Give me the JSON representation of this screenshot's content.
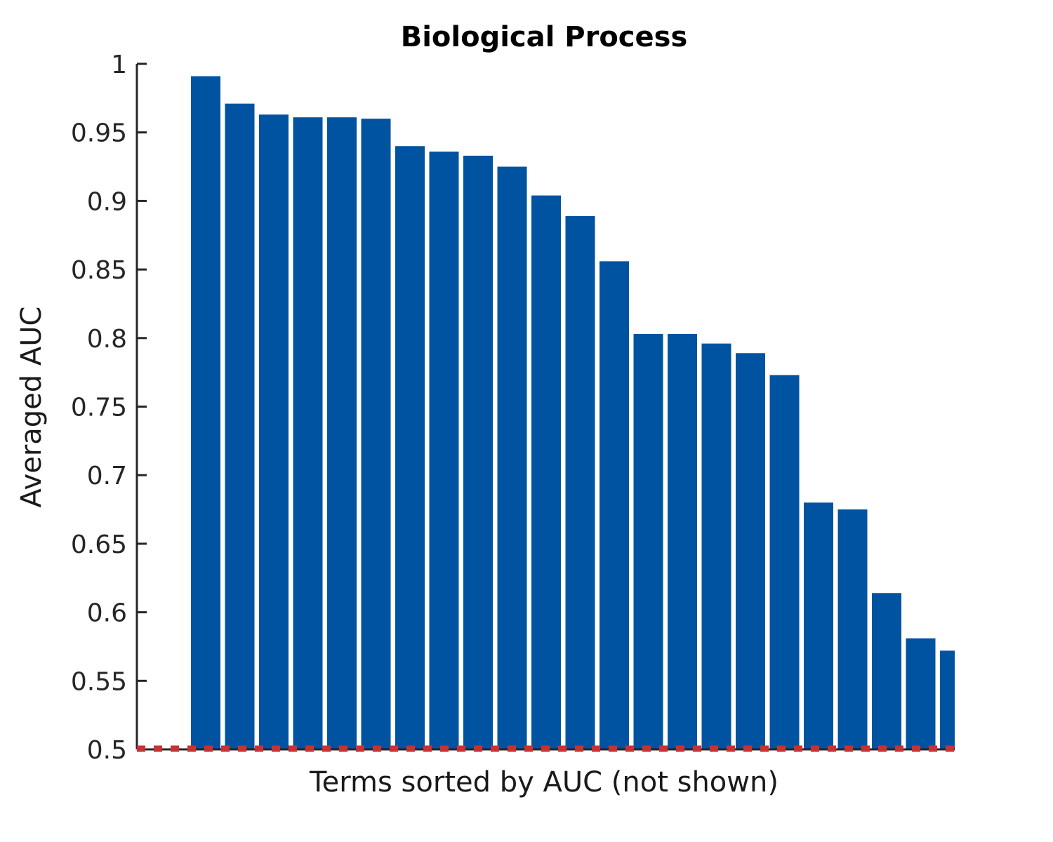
{
  "chart_data": {
    "type": "bar",
    "title": "Biological Process",
    "xlabel": "Terms sorted by AUC (not shown)",
    "ylabel": "Averaged AUC",
    "ylim": [
      0.5,
      1
    ],
    "yticks": [
      "0.5",
      "0.55",
      "0.6",
      "0.65",
      "0.7",
      "0.75",
      "0.8",
      "0.85",
      "0.9",
      "0.95",
      "1"
    ],
    "values": [
      0.991,
      0.971,
      0.963,
      0.961,
      0.961,
      0.96,
      0.94,
      0.936,
      0.933,
      0.925,
      0.904,
      0.889,
      0.856,
      0.803,
      0.803,
      0.796,
      0.789,
      0.773,
      0.68,
      0.675,
      0.614,
      0.581,
      0.572
    ],
    "baseline": 0.5,
    "bar_color": "#0053a0",
    "baseline_color": "#c83232",
    "grid": false,
    "legend": "none"
  }
}
